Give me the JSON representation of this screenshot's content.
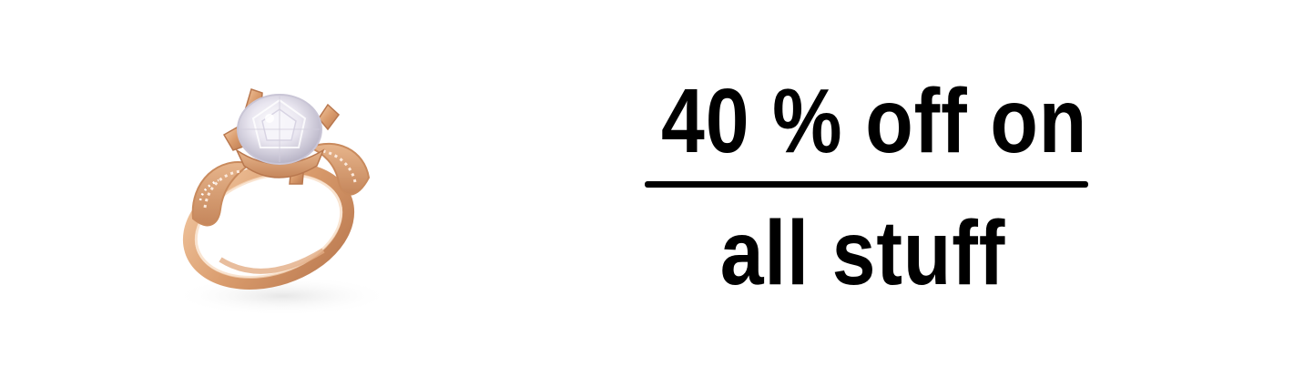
{
  "banner": {
    "product_image": {
      "subject": "ring-icon",
      "metal_color": "#d9a37b",
      "stone_color": "#f2f0f6"
    },
    "promo": {
      "line1": "40 % off on",
      "line2": "all stuff",
      "text_color": "#000000"
    }
  }
}
